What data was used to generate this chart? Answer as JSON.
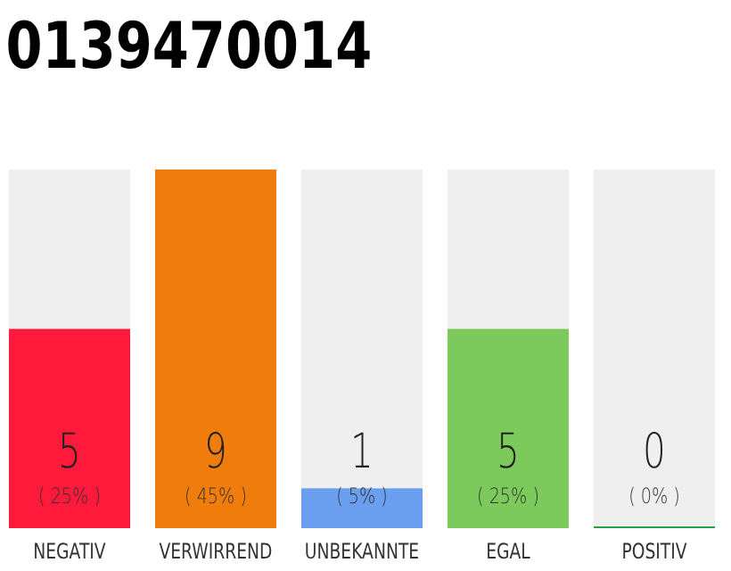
{
  "chart_data": {
    "type": "bar",
    "title": "0139470014",
    "categories": [
      "NEGATIV",
      "VERWIRREND",
      "UNBEKANNTE",
      "EGAL",
      "POSITIV"
    ],
    "values": [
      5,
      9,
      1,
      5,
      0
    ],
    "colors": [
      "#ff1a3c",
      "#f07c0c",
      "#6a9ff0",
      "#7cc95c",
      "#2aa04a"
    ],
    "data_labels": true,
    "annotations": [
      "( 25% )",
      "( 45% )",
      "( 5% )",
      "( 25% )",
      "( 0% )"
    ],
    "tick_labels": "x"
  }
}
